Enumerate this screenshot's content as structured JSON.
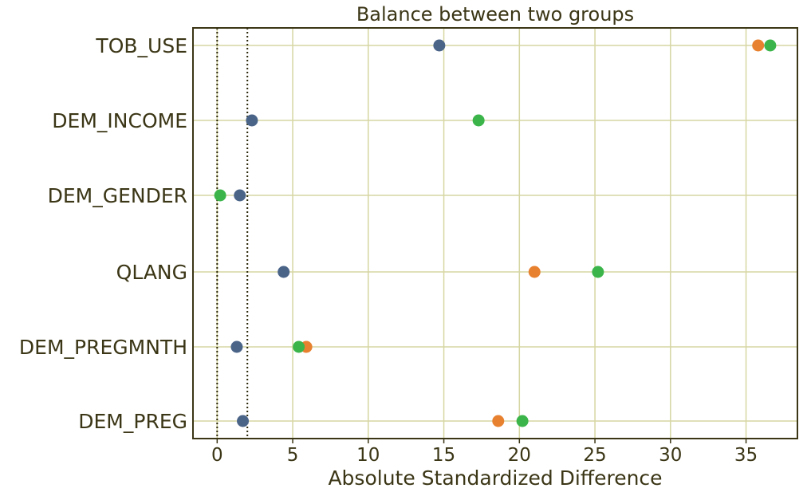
{
  "chart_data": {
    "type": "scatter",
    "title": "Balance between two groups",
    "xlabel": "Absolute Standardized Difference",
    "ylabel": "",
    "xlim": [
      -1.6,
      38.4
    ],
    "xticks": [
      0,
      5,
      10,
      15,
      20,
      25,
      30,
      35
    ],
    "categories": [
      "TOB_USE",
      "DEM_INCOME",
      "DEM_GENDER",
      "QLANG",
      "DEM_PREGMNTH",
      "DEM_PREG"
    ],
    "grid": true,
    "reference_lines": [
      0,
      2
    ],
    "series": [
      {
        "color": "#e8812f",
        "values": [
          35.8,
          null,
          null,
          21.0,
          5.9,
          18.6
        ]
      },
      {
        "color": "#3bb54a",
        "values": [
          36.6,
          17.3,
          0.2,
          25.2,
          5.4,
          20.2
        ]
      },
      {
        "color": "#4a6488",
        "values": [
          14.7,
          2.3,
          1.5,
          4.4,
          1.3,
          1.7
        ]
      }
    ],
    "colors": {
      "grid": "#d6d6a3",
      "axes": "#3b3616",
      "text": "#3b3616"
    }
  }
}
